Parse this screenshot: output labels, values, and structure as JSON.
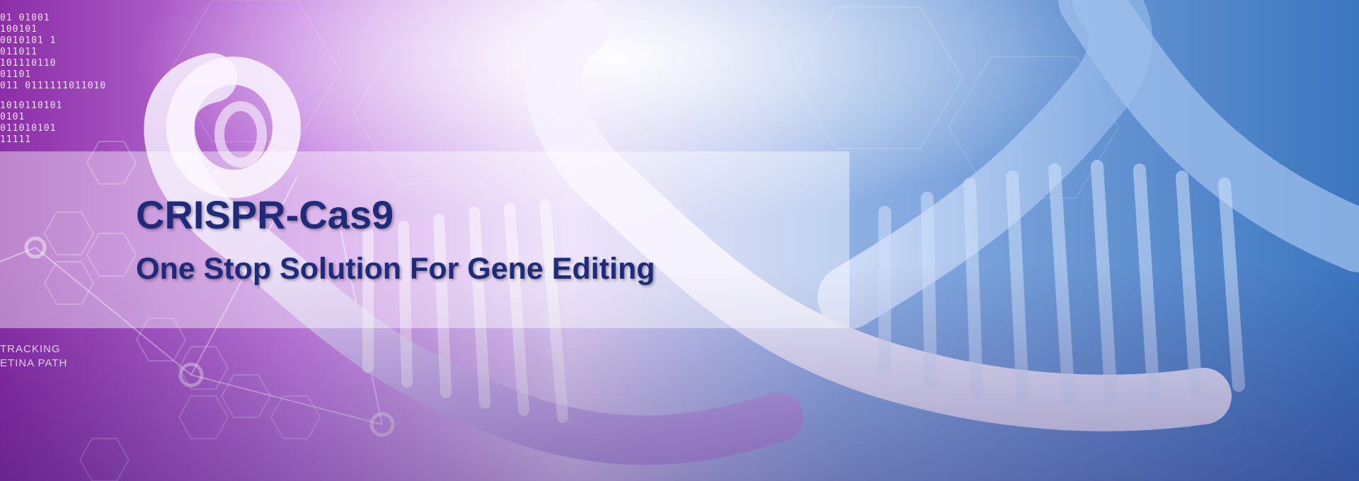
{
  "banner": {
    "title": "CRISPR-Cas9",
    "subtitle": "One Stop Solution For Gene Editing"
  },
  "decor": {
    "binary_lines_top": [
      "01 01001",
      "100101",
      "0010101 1",
      "011011",
      "101110110",
      "01101",
      "011 0111111011010"
    ],
    "binary_lines_bottom": [
      "1010110101",
      "0101",
      "011010101",
      "11111"
    ],
    "overlay_labels": [
      "TRACKING",
      "ETINA PATH"
    ]
  },
  "colors": {
    "text_primary": "#1e2a7a",
    "bg_left": "#8a2fa8",
    "bg_center": "#d9c8f2",
    "bg_right": "#3a78c0"
  }
}
